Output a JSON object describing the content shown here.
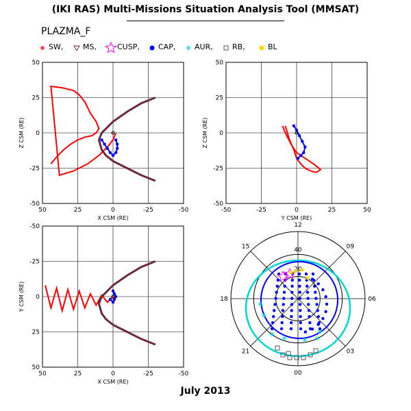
{
  "title": "(IKI RAS) Multi-Missions Situation Analysis Tool (MMSAT)",
  "panel_name": "PLAZMA_F",
  "footer": "July 2013",
  "legend": [
    {
      "symbol": "asterisk",
      "label": "SW,",
      "color": "#ff0000"
    },
    {
      "symbol": "triangle-down",
      "label": "MS,",
      "color": "#7a1f3d"
    },
    {
      "symbol": "star",
      "label": "CUSP,",
      "color": "#ff00ff"
    },
    {
      "symbol": "dot",
      "label": "CAP,",
      "color": "#0000ff"
    },
    {
      "symbol": "asterisk",
      "label": "AUR,",
      "color": "#00d5d5"
    },
    {
      "symbol": "square",
      "label": "RB,",
      "color": "#555555"
    },
    {
      "symbol": "dot",
      "label": "BL",
      "color": "#ffd700"
    }
  ],
  "chart_data": [
    {
      "type": "scatter",
      "title": "",
      "xlabel": "X CSM (RE)",
      "ylabel": "Z CSM (RE)",
      "xlim": [
        50,
        -50
      ],
      "ylim": [
        -50,
        50
      ],
      "xticks": [
        "50",
        "25",
        "0",
        "-25",
        "-50"
      ],
      "yticks": [
        "-50",
        "-25",
        "0",
        "25",
        "50"
      ],
      "grid": true,
      "series": [
        {
          "name": "SW",
          "color": "#ff0000",
          "x": [
            44,
            40,
            35,
            30,
            25,
            20,
            15,
            12,
            10,
            12,
            16,
            20,
            24,
            28,
            36,
            44,
            38,
            28,
            18,
            10,
            4,
            0,
            -2
          ],
          "y": [
            -22,
            -17,
            -12,
            -8,
            -5,
            -3,
            -2,
            0,
            3,
            8,
            14,
            22,
            27,
            30,
            32,
            33,
            -30,
            -27,
            -22,
            -16,
            -10,
            -5,
            0
          ]
        },
        {
          "name": "MS",
          "color": "#6b2a3b",
          "x": [
            -30,
            -20,
            -10,
            0,
            5,
            8,
            10,
            8,
            5,
            0,
            -10,
            -20,
            -30
          ],
          "y": [
            25,
            21,
            15,
            8,
            3,
            0,
            -5,
            -12,
            -16,
            -20,
            -25,
            -30,
            -34
          ]
        },
        {
          "name": "CAP",
          "color": "#0000ff",
          "x": [
            -2,
            -3,
            -3,
            -2,
            0,
            2,
            4,
            6,
            8
          ],
          "y": [
            -5,
            -8,
            -11,
            -14,
            -16,
            -14,
            -11,
            -8,
            -5
          ]
        }
      ]
    },
    {
      "type": "scatter",
      "title": "",
      "xlabel": "Y CSM (RE)",
      "ylabel": "Z CSM (RE)",
      "xlim": [
        -50,
        50
      ],
      "ylim": [
        -50,
        50
      ],
      "xticks": [
        "-50",
        "-25",
        "0",
        "25",
        "50"
      ],
      "yticks": [
        "-50",
        "-25",
        "0",
        "25",
        "50"
      ],
      "grid": true,
      "series": [
        {
          "name": "SW",
          "color": "#ff0000",
          "x": [
            -8,
            -5,
            -2,
            0,
            3,
            6,
            10,
            14,
            17,
            12,
            6,
            0,
            -4,
            -8,
            -10
          ],
          "y": [
            5,
            -5,
            -12,
            -18,
            -22,
            -25,
            -27,
            -28,
            -26,
            -22,
            -18,
            -14,
            -8,
            0,
            5
          ]
        },
        {
          "name": "CAP",
          "color": "#0000ff",
          "x": [
            -2,
            0,
            2,
            4,
            6,
            5,
            3,
            1
          ],
          "y": [
            5,
            2,
            -2,
            -6,
            -10,
            -14,
            -16,
            -18
          ]
        }
      ]
    },
    {
      "type": "scatter",
      "title": "",
      "xlabel": "X CSM (RE)",
      "ylabel": "Y CSM (RE)",
      "xlim": [
        50,
        -50
      ],
      "ylim": [
        50,
        -50
      ],
      "xticks": [
        "50",
        "25",
        "0",
        "-25",
        "-50"
      ],
      "yticks": [
        "50",
        "25",
        "0",
        "-25",
        "-50"
      ],
      "grid": true,
      "series": [
        {
          "name": "SW",
          "color": "#ff0000",
          "x": [
            48,
            44,
            40,
            36,
            32,
            28,
            24,
            20,
            16,
            12,
            8,
            4,
            0
          ],
          "y": [
            -8,
            8,
            -6,
            10,
            -5,
            9,
            -4,
            8,
            -2,
            6,
            -1,
            4,
            0
          ]
        },
        {
          "name": "MS",
          "color": "#6b2a3b",
          "x": [
            -30,
            -20,
            -10,
            0,
            5,
            8,
            10,
            8,
            5,
            0,
            -10,
            -20,
            -30
          ],
          "y": [
            -25,
            -21,
            -15,
            -8,
            -3,
            0,
            5,
            12,
            16,
            20,
            25,
            30,
            34
          ]
        },
        {
          "name": "CAP",
          "color": "#0000ff",
          "x": [
            0,
            -1,
            -2,
            -1,
            0,
            2
          ],
          "y": [
            -4,
            -2,
            0,
            2,
            4,
            2
          ]
        }
      ]
    },
    {
      "type": "polar",
      "title": "",
      "hour_labels": [
        "12",
        "15",
        "18",
        "21",
        "00",
        "03",
        "06",
        "09"
      ],
      "ring_labels": [
        "20",
        "40"
      ],
      "series": [
        {
          "name": "CAP",
          "color": "#0000ff"
        },
        {
          "name": "AUR",
          "color": "#00d5d5"
        },
        {
          "name": "CUSP",
          "color": "#ff00ff"
        },
        {
          "name": "BL",
          "color": "#ffd700"
        },
        {
          "name": "RB",
          "color": "#555555"
        }
      ]
    }
  ]
}
